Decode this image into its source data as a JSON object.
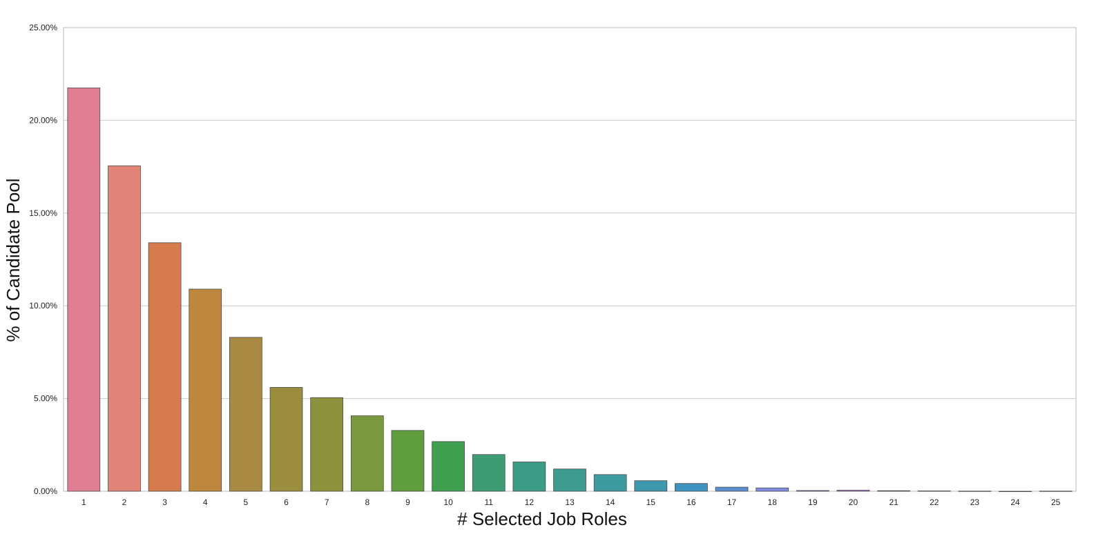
{
  "chart_data": {
    "type": "bar",
    "title": "",
    "xlabel": "# Selected Job Roles",
    "ylabel": "% of Candidate Pool",
    "categories": [
      "1",
      "2",
      "3",
      "4",
      "5",
      "6",
      "7",
      "8",
      "9",
      "10",
      "11",
      "12",
      "13",
      "14",
      "15",
      "16",
      "17",
      "18",
      "19",
      "20",
      "21",
      "22",
      "23",
      "24",
      "25"
    ],
    "values": [
      21.75,
      17.55,
      13.4,
      10.9,
      8.3,
      5.6,
      5.05,
      4.07,
      3.28,
      2.68,
      1.98,
      1.58,
      1.2,
      0.9,
      0.57,
      0.42,
      0.22,
      0.18,
      0.04,
      0.06,
      0.03,
      0.02,
      0.01,
      0.0,
      0.01
    ],
    "ylim": [
      0,
      25
    ],
    "yticks": [
      0,
      5,
      10,
      15,
      20,
      25
    ],
    "ytick_labels": [
      "0.00%",
      "5.00%",
      "10.00%",
      "15.00%",
      "20.00%",
      "25.00%"
    ],
    "grid": true,
    "colors": [
      "#e07f93",
      "#e08478",
      "#d57b4d",
      "#bd873e",
      "#a98a43",
      "#9b8d3e",
      "#8c913e",
      "#7a993e",
      "#5f9d3f",
      "#3f9f50",
      "#3d9c74",
      "#3d9c85",
      "#3d9b90",
      "#3d9a9e",
      "#3d98ae",
      "#3f93c0",
      "#5b8ed1",
      "#7f8ce0",
      "#9c8ae3",
      "#b185e0",
      "#c67fd7",
      "#d57bc8",
      "#df79b5",
      "#e27ba5",
      "#e17c96"
    ]
  }
}
